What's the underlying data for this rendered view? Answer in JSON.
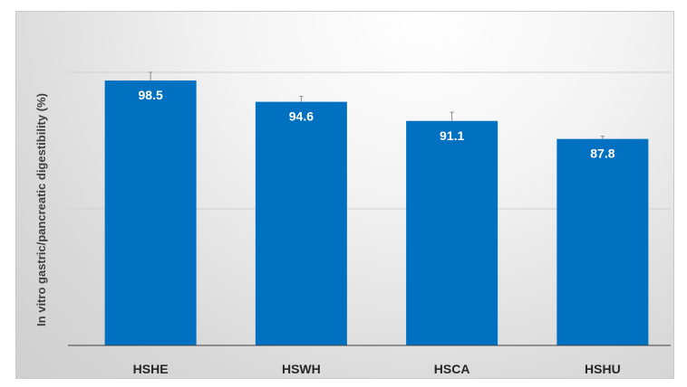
{
  "chart_data": {
    "type": "bar",
    "title": "",
    "xlabel": "",
    "ylabel": "In vitro gastric/pancreatic digestibility (%)",
    "categories": [
      "HSHE",
      "HSWH",
      "HSCA",
      "HSHU"
    ],
    "values": [
      98.5,
      94.6,
      91.1,
      87.8
    ],
    "data_labels": [
      "98.5",
      "94.6",
      "91.1",
      "87.8"
    ],
    "error_bars": [
      1.5,
      1.0,
      1.6,
      0.5
    ],
    "ylim": [
      50,
      100
    ],
    "gridlines": [
      75,
      100
    ],
    "grid": true,
    "tick_labels_shown": false,
    "legend": "none",
    "colors": {
      "bar": "#0070C0",
      "grid": "#d0d0d0",
      "axis": "#404040",
      "error_bar": "#8c8c8c"
    }
  }
}
